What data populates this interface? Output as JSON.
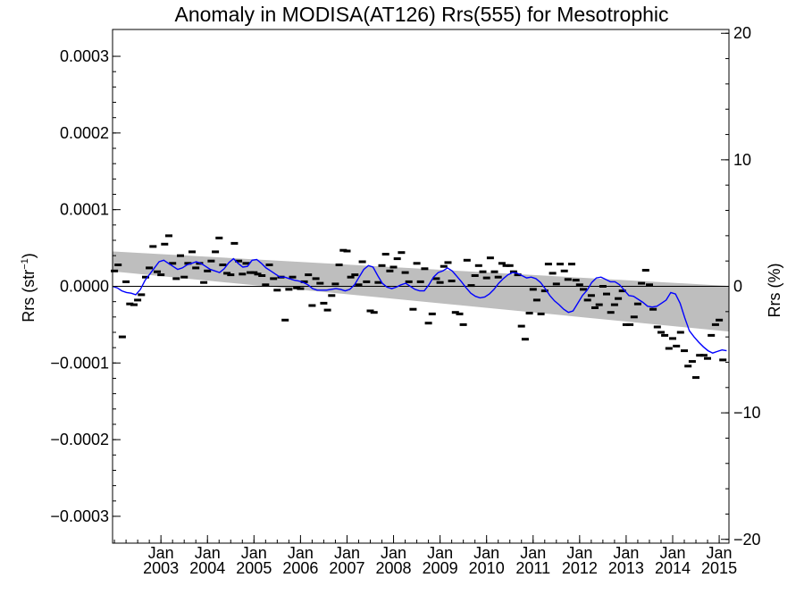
{
  "chart_data": {
    "type": "scatter",
    "title": "Anomaly in MODISA(AT126) Rrs(555) for Mesotrophic",
    "ylabel_left": "Rrs (str",
    "ylabel_left_sup": "−1",
    "ylabel_left_tail": ")",
    "ylabel_right": "Rrs (%)",
    "xlim": [
      2002.0,
      2015.25
    ],
    "ylim_left": [
      -0.000335,
      0.000335
    ],
    "ylim_right": [
      -20.3,
      20.3
    ],
    "grid": false,
    "yticks_left": [
      {
        "value": 0.0003,
        "label": "0.0003"
      },
      {
        "value": 0.0002,
        "label": "0.0002"
      },
      {
        "value": 0.0001,
        "label": "0.0001"
      },
      {
        "value": 0.0,
        "label": "0.0000"
      },
      {
        "value": -0.0001,
        "label": "−0.0001"
      },
      {
        "value": -0.0002,
        "label": "−0.0002"
      },
      {
        "value": -0.0003,
        "label": "−0.0003"
      }
    ],
    "yticks_right": [
      {
        "value": 20,
        "label": "20"
      },
      {
        "value": 10,
        "label": "10"
      },
      {
        "value": 0,
        "label": "0"
      },
      {
        "value": -10,
        "label": "−10"
      },
      {
        "value": -20,
        "label": "−20"
      }
    ],
    "xticks": [
      {
        "x": 2003.04,
        "month": "Jan",
        "year": "2003"
      },
      {
        "x": 2004.04,
        "month": "Jan",
        "year": "2004"
      },
      {
        "x": 2005.04,
        "month": "Jan",
        "year": "2005"
      },
      {
        "x": 2006.04,
        "month": "Jan",
        "year": "2006"
      },
      {
        "x": 2007.04,
        "month": "Jan",
        "year": "2007"
      },
      {
        "x": 2008.04,
        "month": "Jan",
        "year": "2008"
      },
      {
        "x": 2009.04,
        "month": "Jan",
        "year": "2009"
      },
      {
        "x": 2010.04,
        "month": "Jan",
        "year": "2010"
      },
      {
        "x": 2011.04,
        "month": "Jan",
        "year": "2011"
      },
      {
        "x": 2012.04,
        "month": "Jan",
        "year": "2012"
      },
      {
        "x": 2013.04,
        "month": "Jan",
        "year": "2013"
      },
      {
        "x": 2014.04,
        "month": "Jan",
        "year": "2014"
      },
      {
        "x": 2015.04,
        "month": "Jan",
        "year": "2015"
      }
    ],
    "confidence_band": {
      "x_start": 2002.0,
      "x_end": 2015.25,
      "upper_start": 4.55e-05,
      "upper_end": 5e-07,
      "lower_start": 1.95e-05,
      "lower_end": -5.9e-05
    },
    "monthly_anomalies": {
      "x": [
        2002.04,
        2002.12,
        2002.21,
        2002.29,
        2002.37,
        2002.46,
        2002.54,
        2002.62,
        2002.71,
        2002.79,
        2002.87,
        2002.96,
        2003.04,
        2003.12,
        2003.21,
        2003.29,
        2003.37,
        2003.46,
        2003.54,
        2003.62,
        2003.71,
        2003.79,
        2003.87,
        2003.96,
        2004.04,
        2004.12,
        2004.21,
        2004.29,
        2004.37,
        2004.46,
        2004.54,
        2004.62,
        2004.71,
        2004.79,
        2004.87,
        2004.96,
        2005.04,
        2005.12,
        2005.21,
        2005.29,
        2005.37,
        2005.46,
        2005.54,
        2005.62,
        2005.71,
        2005.79,
        2005.87,
        2005.96,
        2006.04,
        2006.12,
        2006.21,
        2006.29,
        2006.37,
        2006.46,
        2006.54,
        2006.62,
        2006.71,
        2006.79,
        2006.87,
        2006.96,
        2007.04,
        2007.12,
        2007.21,
        2007.29,
        2007.37,
        2007.46,
        2007.54,
        2007.62,
        2007.71,
        2007.79,
        2007.87,
        2007.96,
        2008.04,
        2008.12,
        2008.21,
        2008.29,
        2008.37,
        2008.46,
        2008.54,
        2008.62,
        2008.71,
        2008.79,
        2008.87,
        2008.96,
        2009.04,
        2009.12,
        2009.21,
        2009.29,
        2009.37,
        2009.46,
        2009.54,
        2009.62,
        2009.71,
        2009.79,
        2009.87,
        2009.96,
        2010.04,
        2010.12,
        2010.21,
        2010.29,
        2010.37,
        2010.46,
        2010.54,
        2010.62,
        2010.71,
        2010.79,
        2010.87,
        2010.96,
        2011.04,
        2011.12,
        2011.21,
        2011.29,
        2011.37,
        2011.46,
        2011.54,
        2011.62,
        2011.71,
        2011.79,
        2011.87,
        2011.96,
        2012.04,
        2012.12,
        2012.21,
        2012.29,
        2012.37,
        2012.46,
        2012.54,
        2012.62,
        2012.71,
        2012.79,
        2012.87,
        2012.96,
        2013.04,
        2013.12,
        2013.21,
        2013.29,
        2013.37,
        2013.46,
        2013.54,
        2013.62,
        2013.71,
        2013.79,
        2013.87,
        2013.96,
        2014.04,
        2014.12,
        2014.21,
        2014.29,
        2014.37,
        2014.46,
        2014.54,
        2014.62,
        2014.71,
        2014.79,
        2014.87,
        2014.96,
        2015.04,
        2015.12
      ],
      "y": [
        2e-05,
        2.8e-05,
        -6.6e-05,
        6e-06,
        -2.3e-05,
        -2.4e-05,
        -1.8e-05,
        -1.1e-05,
        1.2e-05,
        2.4e-05,
        5.2e-05,
        1.9e-05,
        1.5e-05,
        5.5e-05,
        6.6e-05,
        3e-05,
        1e-05,
        4e-05,
        1.2e-05,
        3e-05,
        4.5e-05,
        2.4e-05,
        3e-05,
        5e-06,
        2e-05,
        3.3e-05,
        4.5e-05,
        6.3e-05,
        2.8e-05,
        1.7e-05,
        1.5e-05,
        5.6e-05,
        3.3e-05,
        1.6e-05,
        3e-05,
        1.8e-05,
        1.8e-05,
        1.6e-05,
        1.4e-05,
        2e-06,
        2.8e-05,
        1e-05,
        -5e-06,
        1.2e-05,
        -4.4e-05,
        -4e-06,
        1.2e-05,
        -2e-06,
        -3e-06,
        6e-06,
        1.5e-05,
        -2.5e-05,
        1e-05,
        4e-06,
        -2.2e-05,
        -3.1e-05,
        -1.2e-05,
        3e-06,
        2.8e-05,
        4.7e-05,
        4.6e-05,
        1.2e-05,
        1.5e-05,
        2e-06,
        3.2e-05,
        6e-06,
        -3.2e-05,
        -3.4e-05,
        5e-06,
        2.7e-05,
        4.2e-05,
        2e-05,
        2.5e-05,
        3.6e-05,
        4.4e-05,
        1.8e-05,
        6e-06,
        -3e-05,
        3e-05,
        6e-06,
        2.3e-05,
        -4.8e-05,
        -3.6e-05,
        1e-05,
        5e-06,
        2.6e-05,
        3.1e-05,
        7e-06,
        -3.4e-05,
        -3.6e-05,
        -5e-05,
        3.4e-05,
        1e-06,
        1.4e-05,
        2.7e-05,
        1.9e-05,
        1.1e-05,
        3.7e-05,
        1.9e-05,
        1.2e-05,
        3e-05,
        2.7e-05,
        2.7e-05,
        1.9e-05,
        1.5e-05,
        -5.2e-05,
        -6.9e-05,
        -3.5e-05,
        -4e-06,
        -1.8e-05,
        -3.6e-05,
        -6e-06,
        2.9e-05,
        1.7e-05,
        3e-06,
        2.9e-05,
        2e-05,
        9e-06,
        2.9e-05,
        8e-06,
        2e-06,
        -4e-06,
        -1.8e-05,
        -1.2e-05,
        -2.8e-05,
        -2.4e-05,
        0.0,
        -1e-05,
        -3.4e-05,
        -2.4e-05,
        -1.6e-05,
        -6e-06,
        -5e-05,
        -5e-05,
        -4e-05,
        -2.3e-05,
        4e-06,
        2.1e-05,
        2e-06,
        -3e-05,
        -5.3e-05,
        -6e-05,
        -6.4e-05,
        -8.1e-05,
        -6.8e-05,
        -7.8e-05,
        -6e-05,
        -8.4e-05,
        -0.000104,
        -9.8e-05,
        -0.000119,
        -9e-05,
        -9e-05,
        -9.4e-05,
        -6.4e-05,
        -5e-05,
        -4.4e-05,
        -9.6e-05
      ]
    },
    "smoothed_series": {
      "name": "",
      "color": "#0000ff",
      "x": [
        2002.0,
        2002.1,
        2002.2,
        2002.3,
        2002.4,
        2002.5,
        2002.6,
        2002.7,
        2002.8,
        2002.9,
        2003.0,
        2003.1,
        2003.2,
        2003.3,
        2003.4,
        2003.5,
        2003.6,
        2003.7,
        2003.8,
        2003.9,
        2004.0,
        2004.1,
        2004.2,
        2004.3,
        2004.4,
        2004.5,
        2004.6,
        2004.7,
        2004.8,
        2004.9,
        2005.0,
        2005.1,
        2005.2,
        2005.3,
        2005.4,
        2005.5,
        2005.6,
        2005.7,
        2005.8,
        2005.9,
        2006.0,
        2006.1,
        2006.2,
        2006.3,
        2006.4,
        2006.5,
        2006.6,
        2006.7,
        2006.8,
        2006.9,
        2007.0,
        2007.1,
        2007.2,
        2007.3,
        2007.4,
        2007.5,
        2007.6,
        2007.7,
        2007.8,
        2007.9,
        2008.0,
        2008.1,
        2008.2,
        2008.3,
        2008.4,
        2008.5,
        2008.6,
        2008.7,
        2008.8,
        2008.9,
        2009.0,
        2009.1,
        2009.2,
        2009.3,
        2009.4,
        2009.5,
        2009.6,
        2009.7,
        2009.8,
        2009.9,
        2010.0,
        2010.1,
        2010.2,
        2010.3,
        2010.4,
        2010.5,
        2010.6,
        2010.7,
        2010.8,
        2010.9,
        2011.0,
        2011.1,
        2011.2,
        2011.3,
        2011.4,
        2011.5,
        2011.6,
        2011.7,
        2011.8,
        2011.9,
        2012.0,
        2012.1,
        2012.2,
        2012.3,
        2012.4,
        2012.5,
        2012.6,
        2012.7,
        2012.8,
        2012.9,
        2013.0,
        2013.1,
        2013.2,
        2013.3,
        2013.4,
        2013.5,
        2013.6,
        2013.7,
        2013.8,
        2013.9,
        2014.0,
        2014.1,
        2014.2,
        2014.3,
        2014.4,
        2014.5,
        2014.6,
        2014.7,
        2014.8,
        2014.9,
        2015.0,
        2015.1,
        2015.2
      ],
      "y": [
        0.0,
        -2e-06,
        -6e-06,
        -8e-06,
        -9e-06,
        -1.1e-05,
        -4e-06,
        8e-06,
        1.6e-05,
        2.4e-05,
        3.2e-05,
        3.4e-05,
        3e-05,
        2.6e-05,
        2.2e-05,
        2.4e-05,
        2.8e-05,
        3e-05,
        3.2e-05,
        3e-05,
        2.6e-05,
        2.2e-05,
        2e-05,
        1.8e-05,
        2.3e-05,
        3.1e-05,
        3.6e-05,
        3e-05,
        2.5e-05,
        2.6e-05,
        3.4e-05,
        3.5e-05,
        3e-05,
        2.4e-05,
        2e-05,
        1.6e-05,
        1.2e-05,
        1.2e-05,
        1e-05,
        8e-06,
        7e-06,
        5e-06,
        2e-06,
        -3e-06,
        -5e-06,
        -5e-06,
        -5e-06,
        -4e-06,
        -3e-06,
        -4e-06,
        -6e-06,
        -4e-06,
        2e-06,
        1.2e-05,
        2.2e-05,
        2.7e-05,
        2.5e-05,
        1.4e-05,
        4e-06,
        -1e-06,
        -3e-06,
        -1e-06,
        2e-06,
        4e-06,
        0.0,
        -4e-06,
        -6e-06,
        -6e-06,
        2e-06,
        1.2e-05,
        1.8e-05,
        2e-05,
        2.4e-05,
        2e-05,
        1.3e-05,
        6e-06,
        -2e-06,
        -9e-06,
        -1.3e-05,
        -1.5e-05,
        -1.4e-05,
        -1e-05,
        -4e-06,
        4e-06,
        1e-05,
        1.5e-05,
        1.8e-05,
        1.7e-05,
        1.4e-05,
        1.1e-05,
        1.2e-05,
        1e-05,
        5e-06,
        -3e-06,
        -1.2e-05,
        -1.9e-05,
        -2.4e-05,
        -3e-05,
        -3.4e-05,
        -3.2e-05,
        -2.2e-05,
        -1.2e-05,
        -5e-06,
        5e-06,
        1.1e-05,
        1.2e-05,
        9e-06,
        6e-06,
        6e-06,
        2e-06,
        -5e-06,
        -1.2e-05,
        -1.3e-05,
        -1.7e-05,
        -2.1e-05,
        -2.6e-05,
        -2.7e-05,
        -2.6e-05,
        -2.2e-05,
        -1.8e-05,
        -8e-06,
        -1e-05,
        -2.2e-05,
        -4.1e-05,
        -5.8e-05,
        -6.6e-05,
        -7.3e-05,
        -7.9e-05,
        -8.4e-05,
        -8.7e-05,
        -8.5e-05,
        -8.3e-05,
        -8.4e-05
      ]
    },
    "zero_line": 0,
    "colors": {
      "band": "#bebebe",
      "line": "#0000ff",
      "markers": "#000000",
      "axes": "#000000"
    }
  }
}
